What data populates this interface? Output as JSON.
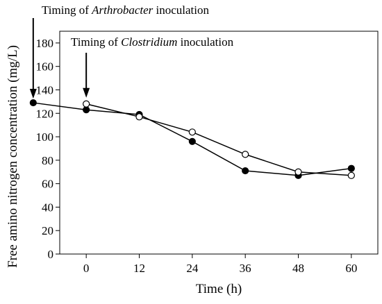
{
  "chart_data": {
    "type": "scatter",
    "xlabel": "Time (h)",
    "ylabel": "Free amino nitrogen concentration (mg/L)",
    "xlim": [
      -6,
      66
    ],
    "ylim": [
      0,
      190
    ],
    "x_ticks": [
      0,
      12,
      24,
      36,
      48,
      60
    ],
    "x_tick_labels": [
      "0",
      "12",
      "24",
      "36",
      "48",
      "60"
    ],
    "y_ticks": [
      0,
      20,
      40,
      60,
      80,
      100,
      120,
      140,
      160,
      180
    ],
    "y_tick_labels": [
      "0",
      "20",
      "40",
      "60",
      "80",
      "100",
      "120",
      "140",
      "160",
      "180"
    ],
    "grid": false,
    "legend": false,
    "series": [
      {
        "marker": "filled-circle",
        "color": "#000000",
        "x": [
          -12,
          0,
          12,
          24,
          36,
          48,
          60
        ],
        "y": [
          129,
          123,
          119,
          96,
          71,
          67,
          73
        ],
        "err": [
          0,
          2,
          1,
          1.5,
          1,
          1.5,
          2
        ]
      },
      {
        "marker": "open-circle",
        "color": "#000000",
        "x": [
          0,
          12,
          24,
          36,
          48,
          60
        ],
        "y": [
          128,
          117,
          104,
          85,
          70,
          67
        ],
        "err": [
          1.5,
          1,
          1,
          1,
          1,
          1.5
        ]
      }
    ],
    "annotations": [
      {
        "text_prefix": "Timing of ",
        "text_italic": "Arthrobacter",
        "text_suffix": " inoculation",
        "x": -12
      },
      {
        "text_prefix": "Timing of ",
        "text_italic": "Clostridium",
        "text_suffix": " inoculation",
        "x": 0
      }
    ]
  }
}
